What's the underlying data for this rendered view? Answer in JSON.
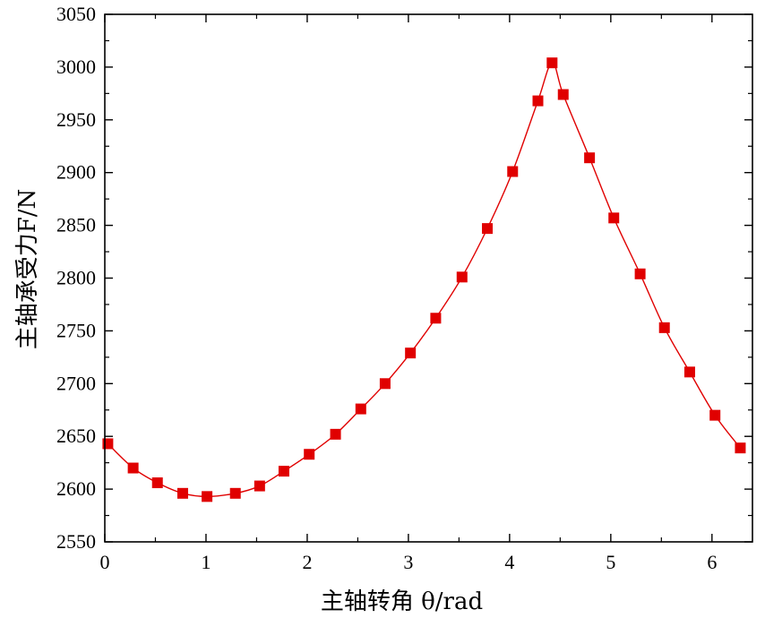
{
  "chart_data": {
    "type": "line",
    "title": "",
    "xlabel": "主轴转角 θ/rad",
    "ylabel": "主轴承受力F/N",
    "xlim": [
      0,
      6.4
    ],
    "ylim": [
      2550,
      3050
    ],
    "x_ticks": [
      "0",
      "1",
      "2",
      "3",
      "4",
      "5",
      "6"
    ],
    "y_ticks": [
      "2550",
      "2600",
      "2650",
      "2700",
      "2750",
      "2800",
      "2850",
      "2900",
      "2950",
      "3000",
      "3050"
    ],
    "grid": false,
    "legend": "none",
    "marker": "square",
    "color": "#e00000",
    "series": [
      {
        "x": [
          0.03,
          0.28,
          0.52,
          0.77,
          1.01,
          1.29,
          1.53,
          1.77,
          2.02,
          2.28,
          2.53,
          2.77,
          3.02,
          3.27,
          3.53,
          3.78,
          4.03,
          4.28,
          4.42,
          4.53,
          4.79,
          5.03,
          5.29,
          5.53,
          5.78,
          6.03,
          6.28
        ],
        "y": [
          2643,
          2620,
          2606,
          2596,
          2593,
          2596,
          2603,
          2617,
          2633,
          2652,
          2676,
          2700,
          2729,
          2762,
          2801,
          2847,
          2901,
          2968,
          3004,
          2974,
          2914,
          2857,
          2804,
          2753,
          2711,
          2670,
          2639
        ]
      }
    ]
  }
}
